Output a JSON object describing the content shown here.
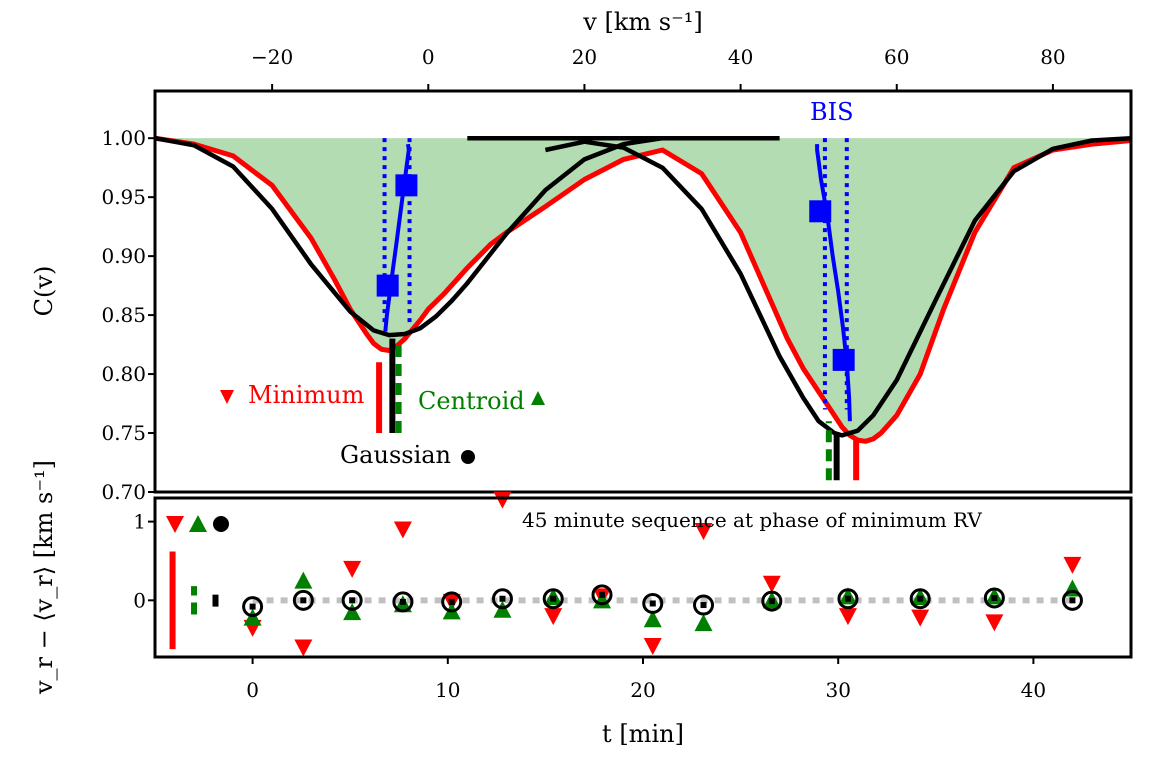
{
  "chart_data": [
    {
      "type": "line",
      "panel": "top",
      "xlabel": "v [km s⁻¹]",
      "ylabel": "C(v)",
      "xlim": [
        -35,
        90
      ],
      "ylim": [
        0.7,
        1.04
      ],
      "xticks": [
        -20,
        0,
        20,
        40,
        60,
        80
      ],
      "xtick_labels": [
        "−20",
        "0",
        "20",
        "40",
        "60",
        "80"
      ],
      "yticks": [
        0.7,
        0.75,
        0.8,
        0.85,
        0.9,
        0.95,
        1.0
      ],
      "ytick_labels": [
        "0.70",
        "0.75",
        "0.80",
        "0.85",
        "0.90",
        "0.95",
        "1.00"
      ],
      "grid": false,
      "colors": {
        "data": "#ff0000",
        "gaussian": "#000000",
        "bis": "#0000ff",
        "fill": "#b3dcb3",
        "centroid": "#008000"
      },
      "series": [
        {
          "role": "observed",
          "x": [
            -35,
            -30,
            -25,
            -20,
            -15,
            -12,
            -10,
            -8,
            -7,
            -6,
            -5,
            -4,
            -3,
            -2,
            -1,
            0,
            2,
            5,
            8,
            10,
            15,
            20,
            25,
            30,
            35,
            40,
            44,
            46,
            48,
            50,
            52,
            53,
            54,
            55,
            56,
            57,
            58,
            60,
            63,
            66,
            70,
            75,
            80,
            85,
            90
          ],
          "y": [
            1.0,
            0.995,
            0.985,
            0.96,
            0.915,
            0.88,
            0.855,
            0.835,
            0.826,
            0.821,
            0.82,
            0.824,
            0.83,
            0.838,
            0.846,
            0.855,
            0.868,
            0.89,
            0.91,
            0.92,
            0.942,
            0.965,
            0.982,
            0.99,
            0.97,
            0.92,
            0.86,
            0.83,
            0.805,
            0.785,
            0.765,
            0.755,
            0.748,
            0.744,
            0.743,
            0.745,
            0.75,
            0.765,
            0.8,
            0.855,
            0.92,
            0.975,
            0.99,
            0.995,
            0.998
          ]
        },
        {
          "role": "gaussian-fit",
          "x": [
            -35,
            -30,
            -25,
            -20,
            -15,
            -10,
            -7,
            -5,
            -3,
            -1,
            1,
            3,
            5,
            10,
            15,
            20,
            25,
            30
          ],
          "y": [
            1.0,
            0.994,
            0.976,
            0.94,
            0.893,
            0.853,
            0.837,
            0.833,
            0.834,
            0.839,
            0.849,
            0.862,
            0.877,
            0.919,
            0.956,
            0.982,
            0.995,
            1.0
          ]
        },
        {
          "role": "gaussian-fit",
          "x": [
            15,
            20,
            25,
            30,
            35,
            40,
            45,
            48,
            50,
            52,
            53,
            55,
            57,
            60,
            65,
            70,
            75,
            80,
            85,
            90
          ],
          "y": [
            0.99,
            0.997,
            0.992,
            0.975,
            0.94,
            0.885,
            0.815,
            0.78,
            0.76,
            0.75,
            0.748,
            0.752,
            0.765,
            0.795,
            0.863,
            0.93,
            0.972,
            0.991,
            0.998,
            1.0
          ]
        },
        {
          "role": "flat-continuum",
          "x": [
            5,
            45
          ],
          "y": [
            1.0,
            1.0
          ]
        },
        {
          "role": "bisector",
          "x": [
            -5.5,
            -5.3,
            -4.9,
            -4.5,
            -4.1,
            -3.7,
            -3.3,
            -3.0,
            -2.8,
            -2.6,
            -2.5,
            -2.6
          ],
          "y": [
            0.836,
            0.85,
            0.87,
            0.89,
            0.91,
            0.93,
            0.95,
            0.965,
            0.975,
            0.985,
            0.99,
            0.995
          ],
          "markers": [
            [
              -5.2,
              0.875
            ],
            [
              -2.8,
              0.96
            ]
          ]
        },
        {
          "role": "bisector",
          "x": [
            54.0,
            53.9,
            53.6,
            53.1,
            52.5,
            51.8,
            51.2,
            50.7,
            50.3,
            50.0,
            49.8,
            49.8
          ],
          "y": [
            0.76,
            0.78,
            0.81,
            0.84,
            0.87,
            0.9,
            0.93,
            0.95,
            0.965,
            0.98,
            0.99,
            0.995
          ],
          "markers": [
            [
              53.2,
              0.812
            ],
            [
              50.2,
              0.938
            ]
          ]
        }
      ],
      "bis_dotted_x": [
        -5.6,
        -2.4,
        50.8,
        53.6
      ],
      "annotations": [
        {
          "text": "BIS",
          "color": "#0000ff"
        },
        {
          "text": "Minimum",
          "color": "#ff0000",
          "marker": "triangle-down"
        },
        {
          "text": "Centroid",
          "color": "#008000",
          "marker": "triangle-up"
        },
        {
          "text": "Gaussian",
          "color": "#000000",
          "marker": "circle"
        }
      ],
      "indicator_bars": [
        {
          "color": "#ff0000",
          "x": -6.3,
          "y": [
            0.75,
            0.81
          ]
        },
        {
          "color": "#000000",
          "x": -4.6,
          "y": [
            0.75,
            0.83
          ],
          "style": "solid"
        },
        {
          "color": "#008000",
          "x": -3.8,
          "y": [
            0.75,
            0.83
          ],
          "style": "dashed"
        },
        {
          "color": "#008000",
          "x": 51.3,
          "y": [
            0.71,
            0.76
          ],
          "style": "dashed"
        },
        {
          "color": "#000000",
          "x": 52.3,
          "y": [
            0.71,
            0.75
          ]
        },
        {
          "color": "#ff0000",
          "x": 54.8,
          "y": [
            0.71,
            0.745
          ]
        }
      ]
    },
    {
      "type": "scatter",
      "panel": "bottom",
      "title": "45 minute sequence at phase of minimum RV",
      "xlabel": "t [min]",
      "ylabel": "v_r − ⟨v_r⟩ [km s⁻¹]",
      "xlim": [
        -5,
        45
      ],
      "ylim": [
        -0.72,
        1.3
      ],
      "xticks": [
        0,
        10,
        20,
        30,
        40
      ],
      "xtick_labels": [
        "0",
        "10",
        "20",
        "30",
        "40"
      ],
      "yticks": [
        0,
        1
      ],
      "ytick_labels": [
        "0",
        "1"
      ],
      "grid": false,
      "reference_line": {
        "y": 0,
        "color": "#c0c0c0",
        "style": "dotted"
      },
      "series": [
        {
          "name": "Minimum",
          "color": "#ff0000",
          "marker": "triangle-down",
          "x": [
            0,
            2.6,
            5.1,
            7.7,
            10.2,
            12.8,
            15.4,
            17.9,
            20.5,
            23.1,
            26.6,
            30.5,
            34.2,
            38.0,
            42.0
          ],
          "y": [
            -0.35,
            -0.6,
            0.4,
            0.9,
            -0.02,
            1.28,
            -0.2,
            0.05,
            -0.58,
            0.88,
            0.21,
            -0.2,
            -0.22,
            -0.28,
            0.45
          ]
        },
        {
          "name": "Centroid",
          "color": "#008000",
          "marker": "triangle-up",
          "x": [
            0,
            2.6,
            5.1,
            7.7,
            10.2,
            12.8,
            15.4,
            17.9,
            20.5,
            23.1,
            26.6,
            30.5,
            34.2,
            38.0,
            42.0
          ],
          "y": [
            -0.22,
            0.25,
            -0.15,
            -0.05,
            -0.14,
            -0.12,
            0.04,
            0.0,
            -0.24,
            -0.29,
            0.0,
            0.05,
            0.04,
            0.05,
            0.15
          ]
        },
        {
          "name": "Gaussian",
          "color": "#000000",
          "marker": "circle",
          "x": [
            0,
            2.6,
            5.1,
            7.7,
            10.2,
            12.8,
            15.4,
            17.9,
            20.5,
            23.1,
            26.6,
            30.5,
            34.2,
            38.0,
            42.0
          ],
          "y": [
            -0.08,
            0.0,
            0.0,
            -0.02,
            -0.02,
            0.02,
            0.02,
            0.07,
            -0.04,
            -0.06,
            -0.01,
            0.02,
            0.02,
            0.03,
            0.0
          ]
        }
      ],
      "error_bars": [
        {
          "color": "#ff0000",
          "x": -4.1,
          "y": [
            -0.62,
            0.62
          ]
        },
        {
          "color": "#008000",
          "x": -3.0,
          "y": [
            -0.18,
            0.18
          ],
          "style": "dashed"
        },
        {
          "color": "#000000",
          "x": -1.9,
          "y": [
            -0.08,
            0.08
          ],
          "style": "dashed"
        }
      ],
      "legend_markers": [
        {
          "marker": "triangle-down",
          "color": "#ff0000"
        },
        {
          "marker": "triangle-up",
          "color": "#008000"
        },
        {
          "marker": "circle",
          "color": "#000000"
        }
      ]
    }
  ]
}
